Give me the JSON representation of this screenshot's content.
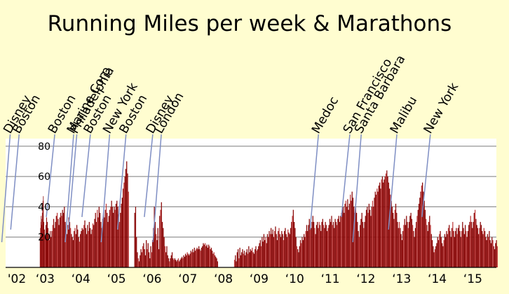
{
  "chart_data": {
    "type": "bar",
    "title": "Running Miles per week & Marathons",
    "xlabel": "",
    "ylabel": "",
    "ylim": [
      0,
      85
    ],
    "yticks": [
      "20",
      "40",
      "60",
      "80"
    ],
    "ytick_values": [
      20,
      40,
      60,
      80
    ],
    "x_range_years": [
      2002.0,
      2015.85
    ],
    "xticks": [
      {
        "label": "'02",
        "year": 2002
      },
      {
        "label": "‘03",
        "year": 2003
      },
      {
        "label": "‘04",
        "year": 2004
      },
      {
        "label": "‘05",
        "year": 2005
      },
      {
        "label": "‘06",
        "year": 2006
      },
      {
        "label": "‘07",
        "year": 2007
      },
      {
        "label": "‘08",
        "year": 2008
      },
      {
        "label": "‘09",
        "year": 2009
      },
      {
        "label": "‘10",
        "year": 2010
      },
      {
        "label": "‘11",
        "year": 2011
      },
      {
        "label": "‘12",
        "year": 2012
      },
      {
        "label": "‘13",
        "year": 2013
      },
      {
        "label": "‘14",
        "year": 2014
      },
      {
        "label": "‘15",
        "year": 2015
      }
    ],
    "grid": true,
    "legend": "none",
    "colors": {
      "bar": "#8b0a0a",
      "bar_light": "#c04040",
      "grid": "#7a7a7a",
      "leader": "#7f8fc4",
      "plot_bg": "#ffffff",
      "page_bg": "#fffdd0"
    },
    "weekly_miles_segments": [
      {
        "from": 2003.0,
        "to": 2003.1,
        "values": [
          20,
          26,
          30,
          34,
          28,
          32,
          36,
          40,
          44,
          47
        ]
      },
      {
        "from": 2003.1,
        "to": 2003.3,
        "values": [
          30,
          25,
          20,
          28,
          33,
          30,
          26,
          22,
          18,
          24
        ]
      },
      {
        "from": 2003.3,
        "to": 2003.6,
        "values": [
          20,
          24,
          28,
          32,
          26,
          30,
          34,
          36,
          32,
          28,
          33,
          36
        ]
      },
      {
        "from": 2003.6,
        "to": 2003.9,
        "values": [
          34,
          38,
          36,
          40,
          30,
          25,
          22,
          28,
          33,
          30,
          26,
          22
        ]
      },
      {
        "from": 2003.9,
        "to": 2004.2,
        "values": [
          20,
          18,
          24,
          26,
          22,
          28,
          25,
          20,
          17,
          22,
          24,
          26
        ]
      },
      {
        "from": 2004.2,
        "to": 2004.5,
        "values": [
          25,
          28,
          31,
          26,
          22,
          28,
          24,
          30,
          26,
          22,
          25,
          29
        ]
      },
      {
        "from": 2004.5,
        "to": 2004.8,
        "values": [
          28,
          32,
          36,
          30,
          38,
          33,
          40,
          36,
          30,
          26,
          32,
          37
        ]
      },
      {
        "from": 2004.8,
        "to": 2005.05,
        "values": [
          33,
          38,
          42,
          36,
          30,
          34,
          38,
          40,
          44,
          40
        ]
      },
      {
        "from": 2005.05,
        "to": 2005.25,
        "values": [
          36,
          40,
          38,
          42,
          44,
          40,
          35,
          30
        ]
      },
      {
        "from": 2005.25,
        "to": 2005.5,
        "values": [
          36,
          42,
          46,
          52,
          56,
          60,
          65,
          70,
          62,
          50
        ]
      },
      {
        "from": 2005.5,
        "to": 2005.65,
        "values": [
          0,
          0,
          0,
          0,
          0,
          0
        ]
      },
      {
        "from": 2005.65,
        "to": 2005.85,
        "values": [
          36,
          40,
          20,
          10,
          6,
          4,
          8,
          12
        ]
      },
      {
        "from": 2005.85,
        "to": 2006.1,
        "values": [
          10,
          14,
          16,
          12,
          8,
          18,
          12,
          16,
          10,
          6
        ]
      },
      {
        "from": 2006.1,
        "to": 2006.35,
        "values": [
          14,
          10,
          18,
          26,
          40,
          30,
          22,
          18,
          26,
          12
        ]
      },
      {
        "from": 2006.35,
        "to": 2006.55,
        "values": [
          34,
          38,
          43,
          30,
          26,
          20,
          14,
          10
        ]
      },
      {
        "from": 2006.55,
        "to": 2006.85,
        "values": [
          14,
          8,
          6,
          4,
          6,
          8,
          10,
          6,
          5,
          6,
          5,
          4
        ]
      },
      {
        "from": 2006.85,
        "to": 2007.2,
        "values": [
          5,
          6,
          4,
          5,
          6,
          7,
          6,
          8,
          7,
          9,
          8,
          10,
          9,
          8
        ]
      },
      {
        "from": 2007.2,
        "to": 2007.55,
        "values": [
          9,
          11,
          10,
          12,
          10,
          13,
          11,
          12,
          13,
          12,
          14,
          12,
          11,
          13
        ]
      },
      {
        "from": 2007.55,
        "to": 2007.85,
        "values": [
          14,
          16,
          15,
          16,
          14,
          15,
          13,
          15,
          14,
          12,
          13,
          11
        ]
      },
      {
        "from": 2007.85,
        "to": 2008.0,
        "values": [
          9,
          10,
          8,
          7,
          6,
          4
        ]
      },
      {
        "from": 2008.0,
        "to": 2008.45,
        "values": [
          0,
          0,
          0,
          0,
          0,
          0,
          0,
          0
        ]
      },
      {
        "from": 2008.45,
        "to": 2008.75,
        "values": [
          5,
          8,
          4,
          10,
          12,
          6,
          13,
          8,
          10,
          12,
          9,
          11
        ]
      },
      {
        "from": 2008.75,
        "to": 2009.1,
        "values": [
          8,
          10,
          12,
          9,
          14,
          10,
          12,
          11,
          13,
          10,
          9,
          12,
          14,
          11
        ]
      },
      {
        "from": 2009.1,
        "to": 2009.4,
        "values": [
          12,
          14,
          16,
          18,
          14,
          20,
          17,
          22,
          18,
          20,
          16,
          22
        ]
      },
      {
        "from": 2009.4,
        "to": 2009.75,
        "values": [
          20,
          24,
          22,
          26,
          22,
          25,
          20,
          24,
          27,
          22,
          18,
          24,
          26,
          22
        ]
      },
      {
        "from": 2009.75,
        "to": 2010.0,
        "values": [
          20,
          24,
          22,
          18,
          24,
          26,
          22,
          20,
          25,
          23
        ]
      },
      {
        "from": 2010.0,
        "to": 2010.2,
        "values": [
          22,
          26,
          30,
          34,
          38,
          30,
          26,
          20
        ]
      },
      {
        "from": 2010.2,
        "to": 2010.5,
        "values": [
          14,
          12,
          10,
          14,
          18,
          16,
          20,
          18,
          22,
          20,
          24,
          28
        ]
      },
      {
        "from": 2010.5,
        "to": 2010.8,
        "values": [
          24,
          28,
          32,
          28,
          26,
          30,
          34,
          30,
          26,
          22,
          28,
          30
        ]
      },
      {
        "from": 2010.8,
        "to": 2011.1,
        "values": [
          26,
          30,
          28,
          24,
          30,
          32,
          28,
          26,
          30,
          28,
          24,
          26
        ]
      },
      {
        "from": 2011.1,
        "to": 2011.4,
        "values": [
          28,
          32,
          30,
          34,
          28,
          30,
          26,
          32,
          30,
          28,
          32,
          34
        ]
      },
      {
        "from": 2011.4,
        "to": 2011.65,
        "values": [
          30,
          34,
          36,
          38,
          40,
          36,
          42,
          44,
          40,
          45
        ]
      },
      {
        "from": 2011.65,
        "to": 2011.85,
        "values": [
          38,
          42,
          48,
          44,
          50,
          46,
          40,
          36
        ]
      },
      {
        "from": 2011.85,
        "to": 2012.1,
        "values": [
          42,
          36,
          30,
          24,
          20,
          28,
          32,
          36,
          30,
          26
        ]
      },
      {
        "from": 2012.1,
        "to": 2012.35,
        "values": [
          30,
          34,
          38,
          40,
          36,
          42,
          38,
          34,
          40,
          44
        ]
      },
      {
        "from": 2012.35,
        "to": 2012.65,
        "values": [
          40,
          46,
          50,
          48,
          52,
          50,
          54,
          56,
          52,
          58,
          60,
          56
        ]
      },
      {
        "from": 2012.65,
        "to": 2012.85,
        "values": [
          58,
          60,
          62,
          64,
          60,
          56,
          52,
          48
        ]
      },
      {
        "from": 2012.85,
        "to": 2013.1,
        "values": [
          44,
          40,
          36,
          32,
          38,
          42,
          36,
          30,
          26,
          30
        ]
      },
      {
        "from": 2013.1,
        "to": 2013.35,
        "values": [
          26,
          22,
          18,
          24,
          28,
          32,
          28,
          34,
          30,
          26
        ]
      },
      {
        "from": 2013.35,
        "to": 2013.6,
        "values": [
          30,
          34,
          36,
          32,
          28,
          24,
          20,
          26,
          30,
          34
        ]
      },
      {
        "from": 2013.6,
        "to": 2013.85,
        "values": [
          38,
          42,
          46,
          50,
          54,
          56,
          50,
          44,
          38,
          32
        ]
      },
      {
        "from": 2013.85,
        "to": 2014.1,
        "values": [
          28,
          24,
          30,
          34,
          28,
          22,
          18,
          14,
          10,
          12
        ]
      },
      {
        "from": 2014.1,
        "to": 2014.4,
        "values": [
          14,
          16,
          20,
          18,
          22,
          24,
          20,
          16,
          14,
          18,
          22,
          20
        ]
      },
      {
        "from": 2014.4,
        "to": 2014.7,
        "values": [
          24,
          22,
          26,
          28,
          24,
          20,
          26,
          30,
          24,
          20,
          24,
          26
        ]
      },
      {
        "from": 2014.7,
        "to": 2015.0,
        "values": [
          22,
          26,
          28,
          24,
          20,
          24,
          30,
          26,
          22,
          28,
          24,
          20
        ]
      },
      {
        "from": 2015.0,
        "to": 2015.3,
        "values": [
          24,
          28,
          30,
          34,
          30,
          26,
          30,
          36,
          38,
          32,
          28,
          26
        ]
      },
      {
        "from": 2015.3,
        "to": 2015.55,
        "values": [
          22,
          26,
          30,
          28,
          24,
          22,
          26,
          24,
          20,
          18
        ]
      },
      {
        "from": 2015.55,
        "to": 2015.85,
        "values": [
          22,
          20,
          24,
          18,
          16,
          20,
          18,
          14,
          12,
          16,
          18,
          14
        ]
      }
    ],
    "marathons": [
      {
        "name": "Disney",
        "year": 2002.05
      },
      {
        "name": "Boston",
        "year": 2002.3
      },
      {
        "name": "Boston",
        "year": 2003.3
      },
      {
        "name": "Marine Corp",
        "year": 2003.83
      },
      {
        "name": "Philadelphia",
        "year": 2003.92
      },
      {
        "name": "Boston",
        "year": 2004.3
      },
      {
        "name": "New York",
        "year": 2004.84
      },
      {
        "name": "Boston",
        "year": 2005.3
      },
      {
        "name": "Disney",
        "year": 2006.05
      },
      {
        "name": "London",
        "year": 2006.29
      },
      {
        "name": "Medoc",
        "year": 2010.7
      },
      {
        "name": "San Francisco",
        "year": 2011.58
      },
      {
        "name": "Santa Barbara",
        "year": 2011.9
      },
      {
        "name": "Malibu",
        "year": 2012.9
      },
      {
        "name": "New York",
        "year": 2013.84
      }
    ]
  }
}
